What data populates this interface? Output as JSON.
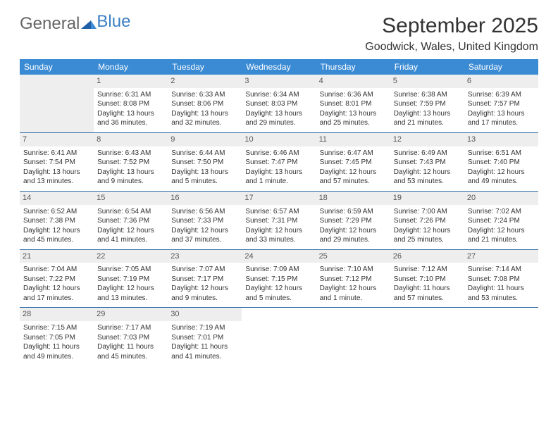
{
  "logo": {
    "part1": "General",
    "part2": "Blue"
  },
  "title": "September 2025",
  "location": "Goodwick, Wales, United Kingdom",
  "header_bg": "#3b8bd4",
  "header_fg": "#ffffff",
  "cell_border": "#2f6ca8",
  "empty_bg": "#eeeeee",
  "daynum_bg": "#eeeeee",
  "days": [
    "Sunday",
    "Monday",
    "Tuesday",
    "Wednesday",
    "Thursday",
    "Friday",
    "Saturday"
  ],
  "weeks": [
    [
      {
        "n": "",
        "empty": true
      },
      {
        "n": "1",
        "sr": "Sunrise: 6:31 AM",
        "ss": "Sunset: 8:08 PM",
        "d1": "Daylight: 13 hours",
        "d2": "and 36 minutes."
      },
      {
        "n": "2",
        "sr": "Sunrise: 6:33 AM",
        "ss": "Sunset: 8:06 PM",
        "d1": "Daylight: 13 hours",
        "d2": "and 32 minutes."
      },
      {
        "n": "3",
        "sr": "Sunrise: 6:34 AM",
        "ss": "Sunset: 8:03 PM",
        "d1": "Daylight: 13 hours",
        "d2": "and 29 minutes."
      },
      {
        "n": "4",
        "sr": "Sunrise: 6:36 AM",
        "ss": "Sunset: 8:01 PM",
        "d1": "Daylight: 13 hours",
        "d2": "and 25 minutes."
      },
      {
        "n": "5",
        "sr": "Sunrise: 6:38 AM",
        "ss": "Sunset: 7:59 PM",
        "d1": "Daylight: 13 hours",
        "d2": "and 21 minutes."
      },
      {
        "n": "6",
        "sr": "Sunrise: 6:39 AM",
        "ss": "Sunset: 7:57 PM",
        "d1": "Daylight: 13 hours",
        "d2": "and 17 minutes."
      }
    ],
    [
      {
        "n": "7",
        "sr": "Sunrise: 6:41 AM",
        "ss": "Sunset: 7:54 PM",
        "d1": "Daylight: 13 hours",
        "d2": "and 13 minutes."
      },
      {
        "n": "8",
        "sr": "Sunrise: 6:43 AM",
        "ss": "Sunset: 7:52 PM",
        "d1": "Daylight: 13 hours",
        "d2": "and 9 minutes."
      },
      {
        "n": "9",
        "sr": "Sunrise: 6:44 AM",
        "ss": "Sunset: 7:50 PM",
        "d1": "Daylight: 13 hours",
        "d2": "and 5 minutes."
      },
      {
        "n": "10",
        "sr": "Sunrise: 6:46 AM",
        "ss": "Sunset: 7:47 PM",
        "d1": "Daylight: 13 hours",
        "d2": "and 1 minute."
      },
      {
        "n": "11",
        "sr": "Sunrise: 6:47 AM",
        "ss": "Sunset: 7:45 PM",
        "d1": "Daylight: 12 hours",
        "d2": "and 57 minutes."
      },
      {
        "n": "12",
        "sr": "Sunrise: 6:49 AM",
        "ss": "Sunset: 7:43 PM",
        "d1": "Daylight: 12 hours",
        "d2": "and 53 minutes."
      },
      {
        "n": "13",
        "sr": "Sunrise: 6:51 AM",
        "ss": "Sunset: 7:40 PM",
        "d1": "Daylight: 12 hours",
        "d2": "and 49 minutes."
      }
    ],
    [
      {
        "n": "14",
        "sr": "Sunrise: 6:52 AM",
        "ss": "Sunset: 7:38 PM",
        "d1": "Daylight: 12 hours",
        "d2": "and 45 minutes."
      },
      {
        "n": "15",
        "sr": "Sunrise: 6:54 AM",
        "ss": "Sunset: 7:36 PM",
        "d1": "Daylight: 12 hours",
        "d2": "and 41 minutes."
      },
      {
        "n": "16",
        "sr": "Sunrise: 6:56 AM",
        "ss": "Sunset: 7:33 PM",
        "d1": "Daylight: 12 hours",
        "d2": "and 37 minutes."
      },
      {
        "n": "17",
        "sr": "Sunrise: 6:57 AM",
        "ss": "Sunset: 7:31 PM",
        "d1": "Daylight: 12 hours",
        "d2": "and 33 minutes."
      },
      {
        "n": "18",
        "sr": "Sunrise: 6:59 AM",
        "ss": "Sunset: 7:29 PM",
        "d1": "Daylight: 12 hours",
        "d2": "and 29 minutes."
      },
      {
        "n": "19",
        "sr": "Sunrise: 7:00 AM",
        "ss": "Sunset: 7:26 PM",
        "d1": "Daylight: 12 hours",
        "d2": "and 25 minutes."
      },
      {
        "n": "20",
        "sr": "Sunrise: 7:02 AM",
        "ss": "Sunset: 7:24 PM",
        "d1": "Daylight: 12 hours",
        "d2": "and 21 minutes."
      }
    ],
    [
      {
        "n": "21",
        "sr": "Sunrise: 7:04 AM",
        "ss": "Sunset: 7:22 PM",
        "d1": "Daylight: 12 hours",
        "d2": "and 17 minutes."
      },
      {
        "n": "22",
        "sr": "Sunrise: 7:05 AM",
        "ss": "Sunset: 7:19 PM",
        "d1": "Daylight: 12 hours",
        "d2": "and 13 minutes."
      },
      {
        "n": "23",
        "sr": "Sunrise: 7:07 AM",
        "ss": "Sunset: 7:17 PM",
        "d1": "Daylight: 12 hours",
        "d2": "and 9 minutes."
      },
      {
        "n": "24",
        "sr": "Sunrise: 7:09 AM",
        "ss": "Sunset: 7:15 PM",
        "d1": "Daylight: 12 hours",
        "d2": "and 5 minutes."
      },
      {
        "n": "25",
        "sr": "Sunrise: 7:10 AM",
        "ss": "Sunset: 7:12 PM",
        "d1": "Daylight: 12 hours",
        "d2": "and 1 minute."
      },
      {
        "n": "26",
        "sr": "Sunrise: 7:12 AM",
        "ss": "Sunset: 7:10 PM",
        "d1": "Daylight: 11 hours",
        "d2": "and 57 minutes."
      },
      {
        "n": "27",
        "sr": "Sunrise: 7:14 AM",
        "ss": "Sunset: 7:08 PM",
        "d1": "Daylight: 11 hours",
        "d2": "and 53 minutes."
      }
    ],
    [
      {
        "n": "28",
        "sr": "Sunrise: 7:15 AM",
        "ss": "Sunset: 7:05 PM",
        "d1": "Daylight: 11 hours",
        "d2": "and 49 minutes."
      },
      {
        "n": "29",
        "sr": "Sunrise: 7:17 AM",
        "ss": "Sunset: 7:03 PM",
        "d1": "Daylight: 11 hours",
        "d2": "and 45 minutes."
      },
      {
        "n": "30",
        "sr": "Sunrise: 7:19 AM",
        "ss": "Sunset: 7:01 PM",
        "d1": "Daylight: 11 hours",
        "d2": "and 41 minutes."
      },
      {
        "n": "",
        "empty": true,
        "blank": true
      },
      {
        "n": "",
        "empty": true,
        "blank": true
      },
      {
        "n": "",
        "empty": true,
        "blank": true
      },
      {
        "n": "",
        "empty": true,
        "blank": true
      }
    ]
  ]
}
